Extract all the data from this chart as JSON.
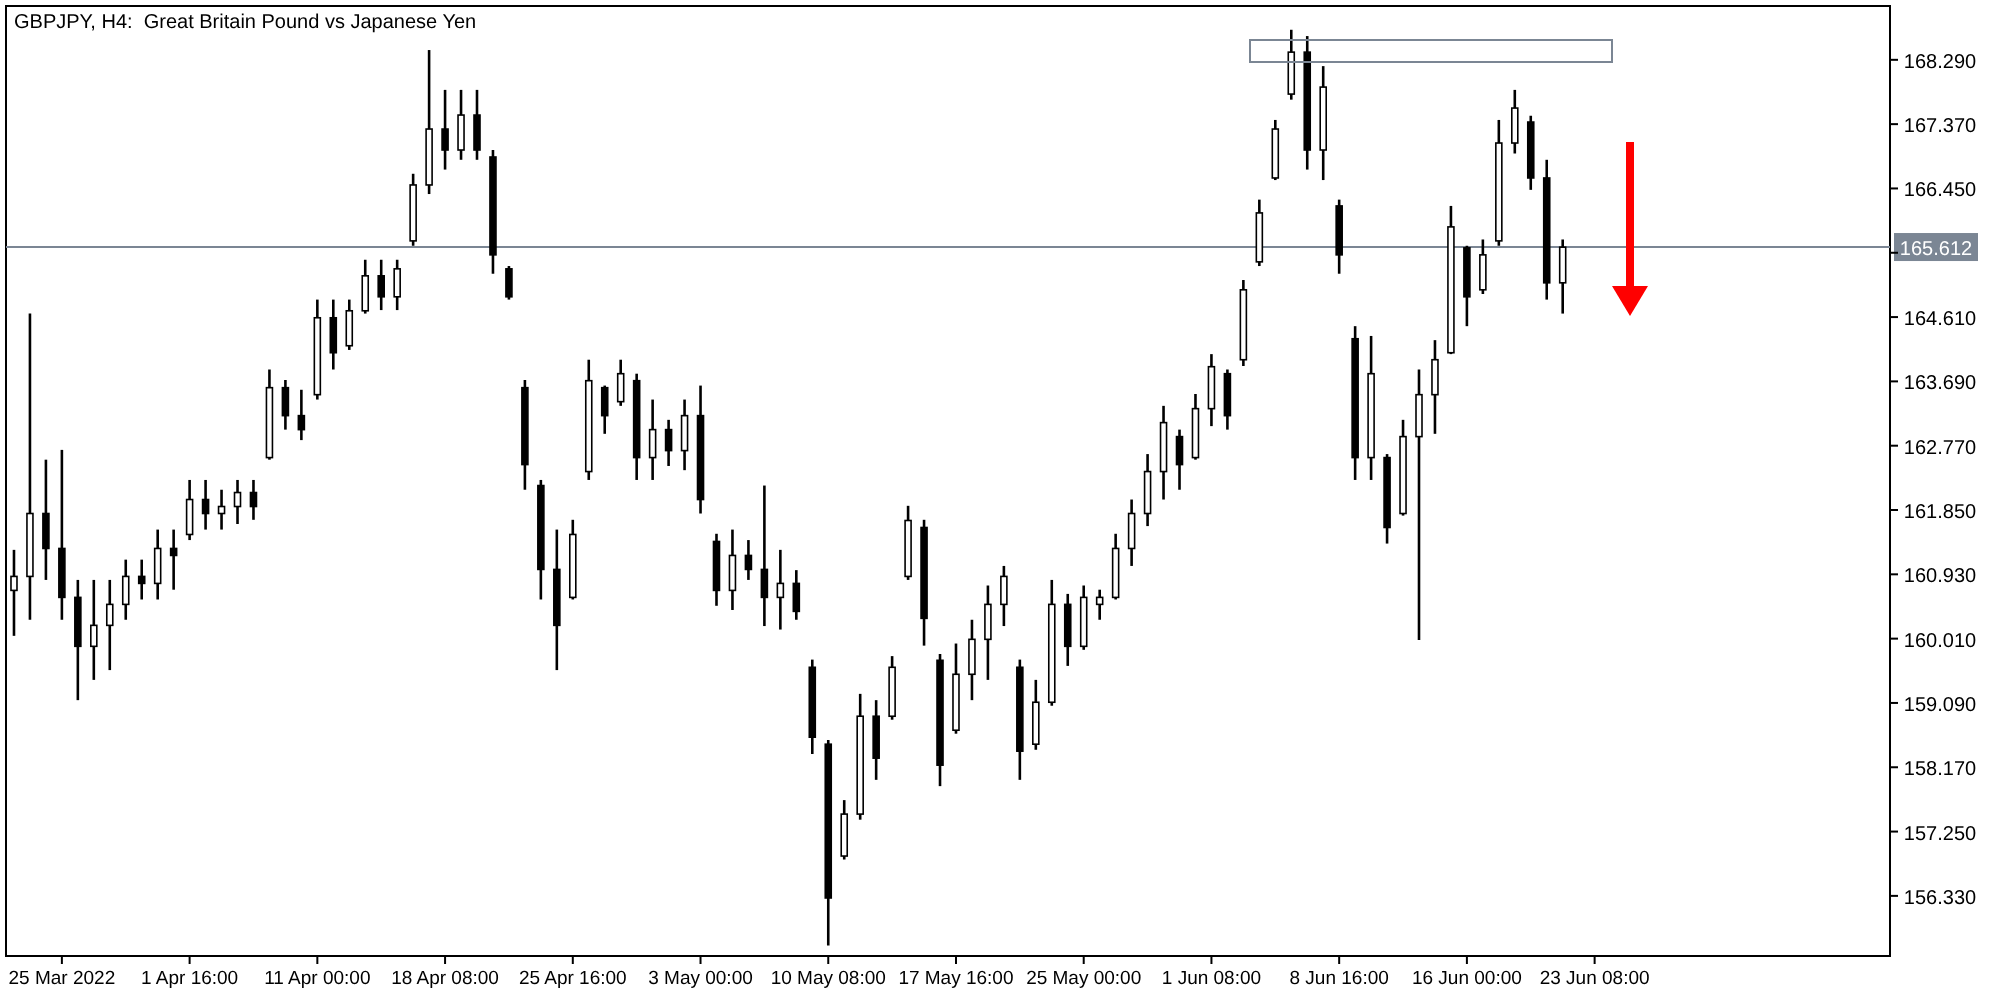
{
  "chart_data": {
    "type": "candlestick",
    "title": "GBPJPY, H4:  Great Britain Pound vs Japanese Yen",
    "color": "#000000",
    "categories": [
      null,
      null,
      null,
      "25 Mar 2022",
      null,
      null,
      null,
      null,
      null,
      null,
      null,
      "1 Apr 16:00",
      null,
      null,
      null,
      null,
      null,
      null,
      null,
      "11 Apr 00:00",
      null,
      null,
      null,
      null,
      null,
      null,
      null,
      "18 Apr 08:00",
      null,
      null,
      null,
      null,
      null,
      null,
      null,
      "25 Apr 16:00",
      null,
      null,
      null,
      null,
      null,
      null,
      null,
      "3 May 00:00",
      null,
      null,
      null,
      null,
      null,
      null,
      null,
      "10 May 08:00",
      null,
      null,
      null,
      null,
      null,
      null,
      null,
      "17 May 16:00",
      null,
      null,
      null,
      null,
      null,
      null,
      null,
      "25 May 00:00",
      null,
      null,
      null,
      null,
      null,
      null,
      null,
      "1 Jun 08:00",
      null,
      null,
      null,
      null,
      null,
      null,
      null,
      "8 Jun 16:00",
      null,
      null,
      null,
      null,
      null,
      null,
      null,
      "16 Jun 00:00",
      null,
      null,
      null,
      null,
      null,
      null,
      null,
      "23 Jun 08:00",
      null,
      null,
      null,
      null,
      null,
      null,
      null,
      null,
      null,
      null,
      null,
      null,
      null,
      null,
      null,
      null,
      null,
      null
    ],
    "ohlc": [
      [
        160.7,
        161.28,
        160.05,
        160.9
      ],
      [
        160.9,
        164.66,
        160.28,
        161.8
      ],
      [
        161.8,
        162.57,
        160.85,
        161.3
      ],
      [
        161.3,
        162.71,
        160.28,
        160.6
      ],
      [
        160.6,
        160.85,
        159.13,
        159.9
      ],
      [
        159.9,
        160.85,
        159.42,
        160.2
      ],
      [
        160.2,
        160.85,
        159.56,
        160.5
      ],
      [
        160.5,
        161.14,
        160.28,
        160.9
      ],
      [
        160.9,
        161.14,
        160.57,
        160.8
      ],
      [
        160.8,
        161.57,
        160.57,
        161.3
      ],
      [
        161.3,
        161.57,
        160.71,
        161.2
      ],
      [
        161.5,
        162.28,
        161.42,
        162.0
      ],
      [
        162.0,
        162.28,
        161.57,
        161.8
      ],
      [
        161.8,
        162.14,
        161.57,
        161.9
      ],
      [
        161.9,
        162.28,
        161.65,
        162.1
      ],
      [
        162.1,
        162.28,
        161.71,
        161.9
      ],
      [
        162.6,
        163.86,
        162.57,
        163.6
      ],
      [
        163.6,
        163.71,
        163.0,
        163.2
      ],
      [
        163.2,
        163.57,
        162.85,
        163.0
      ],
      [
        163.5,
        164.86,
        163.43,
        164.6
      ],
      [
        164.6,
        164.86,
        163.86,
        164.1
      ],
      [
        164.2,
        164.86,
        164.14,
        164.7
      ],
      [
        164.7,
        165.43,
        164.66,
        165.2
      ],
      [
        165.2,
        165.43,
        164.71,
        164.9
      ],
      [
        164.9,
        165.43,
        164.71,
        165.3
      ],
      [
        165.7,
        166.66,
        165.63,
        166.5
      ],
      [
        166.5,
        168.43,
        166.37,
        167.3
      ],
      [
        167.3,
        167.86,
        166.72,
        167.0
      ],
      [
        167.0,
        167.86,
        166.86,
        167.5
      ],
      [
        167.5,
        167.86,
        166.86,
        167.0
      ],
      [
        166.9,
        167.0,
        165.23,
        165.5
      ],
      [
        165.3,
        165.34,
        164.86,
        164.9
      ],
      [
        163.6,
        163.71,
        162.14,
        162.5
      ],
      [
        162.2,
        162.28,
        160.57,
        161.0
      ],
      [
        161.0,
        161.57,
        159.56,
        160.2
      ],
      [
        160.6,
        161.71,
        160.57,
        161.5
      ],
      [
        162.4,
        164.0,
        162.28,
        163.7
      ],
      [
        163.6,
        163.63,
        162.94,
        163.2
      ],
      [
        163.4,
        164.0,
        163.34,
        163.8
      ],
      [
        163.7,
        163.8,
        162.28,
        162.6
      ],
      [
        162.6,
        163.43,
        162.28,
        163.0
      ],
      [
        163.0,
        163.14,
        162.48,
        162.7
      ],
      [
        162.7,
        163.43,
        162.42,
        163.2
      ],
      [
        163.2,
        163.63,
        161.8,
        162.0
      ],
      [
        161.4,
        161.51,
        160.48,
        160.7
      ],
      [
        160.7,
        161.57,
        160.42,
        161.2
      ],
      [
        161.2,
        161.42,
        160.85,
        161.0
      ],
      [
        161.0,
        162.2,
        160.19,
        160.6
      ],
      [
        160.6,
        161.28,
        160.14,
        160.8
      ],
      [
        160.8,
        160.99,
        160.28,
        160.4
      ],
      [
        159.6,
        159.71,
        158.36,
        158.6
      ],
      [
        158.5,
        158.56,
        155.62,
        156.3
      ],
      [
        156.9,
        157.7,
        156.85,
        157.5
      ],
      [
        157.5,
        159.22,
        157.42,
        158.9
      ],
      [
        158.9,
        159.13,
        157.99,
        158.3
      ],
      [
        158.9,
        159.76,
        158.85,
        159.6
      ],
      [
        160.9,
        161.91,
        160.85,
        161.7
      ],
      [
        161.6,
        161.71,
        159.91,
        160.3
      ],
      [
        159.7,
        159.79,
        157.9,
        158.2
      ],
      [
        158.7,
        159.94,
        158.65,
        159.5
      ],
      [
        159.5,
        160.28,
        159.13,
        160.0
      ],
      [
        160.0,
        160.77,
        159.42,
        160.5
      ],
      [
        160.5,
        161.05,
        160.19,
        160.9
      ],
      [
        159.6,
        159.71,
        157.99,
        158.4
      ],
      [
        158.5,
        159.42,
        158.42,
        159.1
      ],
      [
        159.1,
        160.85,
        159.05,
        160.5
      ],
      [
        160.5,
        160.65,
        159.62,
        159.9
      ],
      [
        159.9,
        160.77,
        159.85,
        160.6
      ],
      [
        160.5,
        160.71,
        160.28,
        160.6
      ],
      [
        160.6,
        161.51,
        160.57,
        161.3
      ],
      [
        161.3,
        162.0,
        161.05,
        161.8
      ],
      [
        161.8,
        162.65,
        161.62,
        162.4
      ],
      [
        162.4,
        163.34,
        162.0,
        163.1
      ],
      [
        162.9,
        163.0,
        162.14,
        162.5
      ],
      [
        162.6,
        163.51,
        162.57,
        163.3
      ],
      [
        163.3,
        164.08,
        163.05,
        163.9
      ],
      [
        163.8,
        163.86,
        163.0,
        163.2
      ],
      [
        164.0,
        165.14,
        163.91,
        165.0
      ],
      [
        165.4,
        166.29,
        165.34,
        166.1
      ],
      [
        166.6,
        167.43,
        166.57,
        167.3
      ],
      [
        167.8,
        168.72,
        167.72,
        168.4
      ],
      [
        168.4,
        168.63,
        166.72,
        167.0
      ],
      [
        167.0,
        168.2,
        166.57,
        167.9
      ],
      [
        166.2,
        166.29,
        165.23,
        165.5
      ],
      [
        164.3,
        164.48,
        162.28,
        162.6
      ],
      [
        162.6,
        164.34,
        162.28,
        163.8
      ],
      [
        162.6,
        162.65,
        161.37,
        161.6
      ],
      [
        161.8,
        163.14,
        161.77,
        162.9
      ],
      [
        162.9,
        163.86,
        159.99,
        163.5
      ],
      [
        163.5,
        164.28,
        162.94,
        164.0
      ],
      [
        164.1,
        166.2,
        164.08,
        165.9
      ],
      [
        165.6,
        165.63,
        164.48,
        164.9
      ],
      [
        165.0,
        165.72,
        164.94,
        165.5
      ],
      [
        165.7,
        167.43,
        165.63,
        167.1
      ],
      [
        167.1,
        167.86,
        166.95,
        167.6
      ],
      [
        167.4,
        167.49,
        166.43,
        166.6
      ],
      [
        166.6,
        166.86,
        164.86,
        165.1
      ],
      [
        165.1,
        165.72,
        164.66,
        165.61
      ],
      null,
      null,
      null,
      null,
      null,
      null,
      null,
      null,
      null,
      null,
      null,
      null,
      null,
      null,
      null,
      null,
      null,
      null,
      null,
      null
    ],
    "ylim": [
      155.47,
      169.06
    ],
    "yticks": [
      {
        "value": 156.33,
        "label": "156.330"
      },
      {
        "value": 157.25,
        "label": "157.250"
      },
      {
        "value": 158.17,
        "label": "158.170"
      },
      {
        "value": 159.09,
        "label": "159.090"
      },
      {
        "value": 160.01,
        "label": "160.010"
      },
      {
        "value": 160.93,
        "label": "160.930"
      },
      {
        "value": 161.85,
        "label": "161.850"
      },
      {
        "value": 162.77,
        "label": "162.770"
      },
      {
        "value": 163.69,
        "label": "163.690"
      },
      {
        "value": 164.61,
        "label": "164.610"
      },
      {
        "value": 165.53,
        "label": null
      },
      {
        "value": 166.45,
        "label": "166.450"
      },
      {
        "value": 167.37,
        "label": "167.370"
      },
      {
        "value": 168.29,
        "label": "168.290"
      }
    ],
    "ref_lines": [
      {
        "axis": "y",
        "value": 165.612,
        "label": "165.612",
        "color": "#7b8694"
      }
    ],
    "grid": false
  }
}
